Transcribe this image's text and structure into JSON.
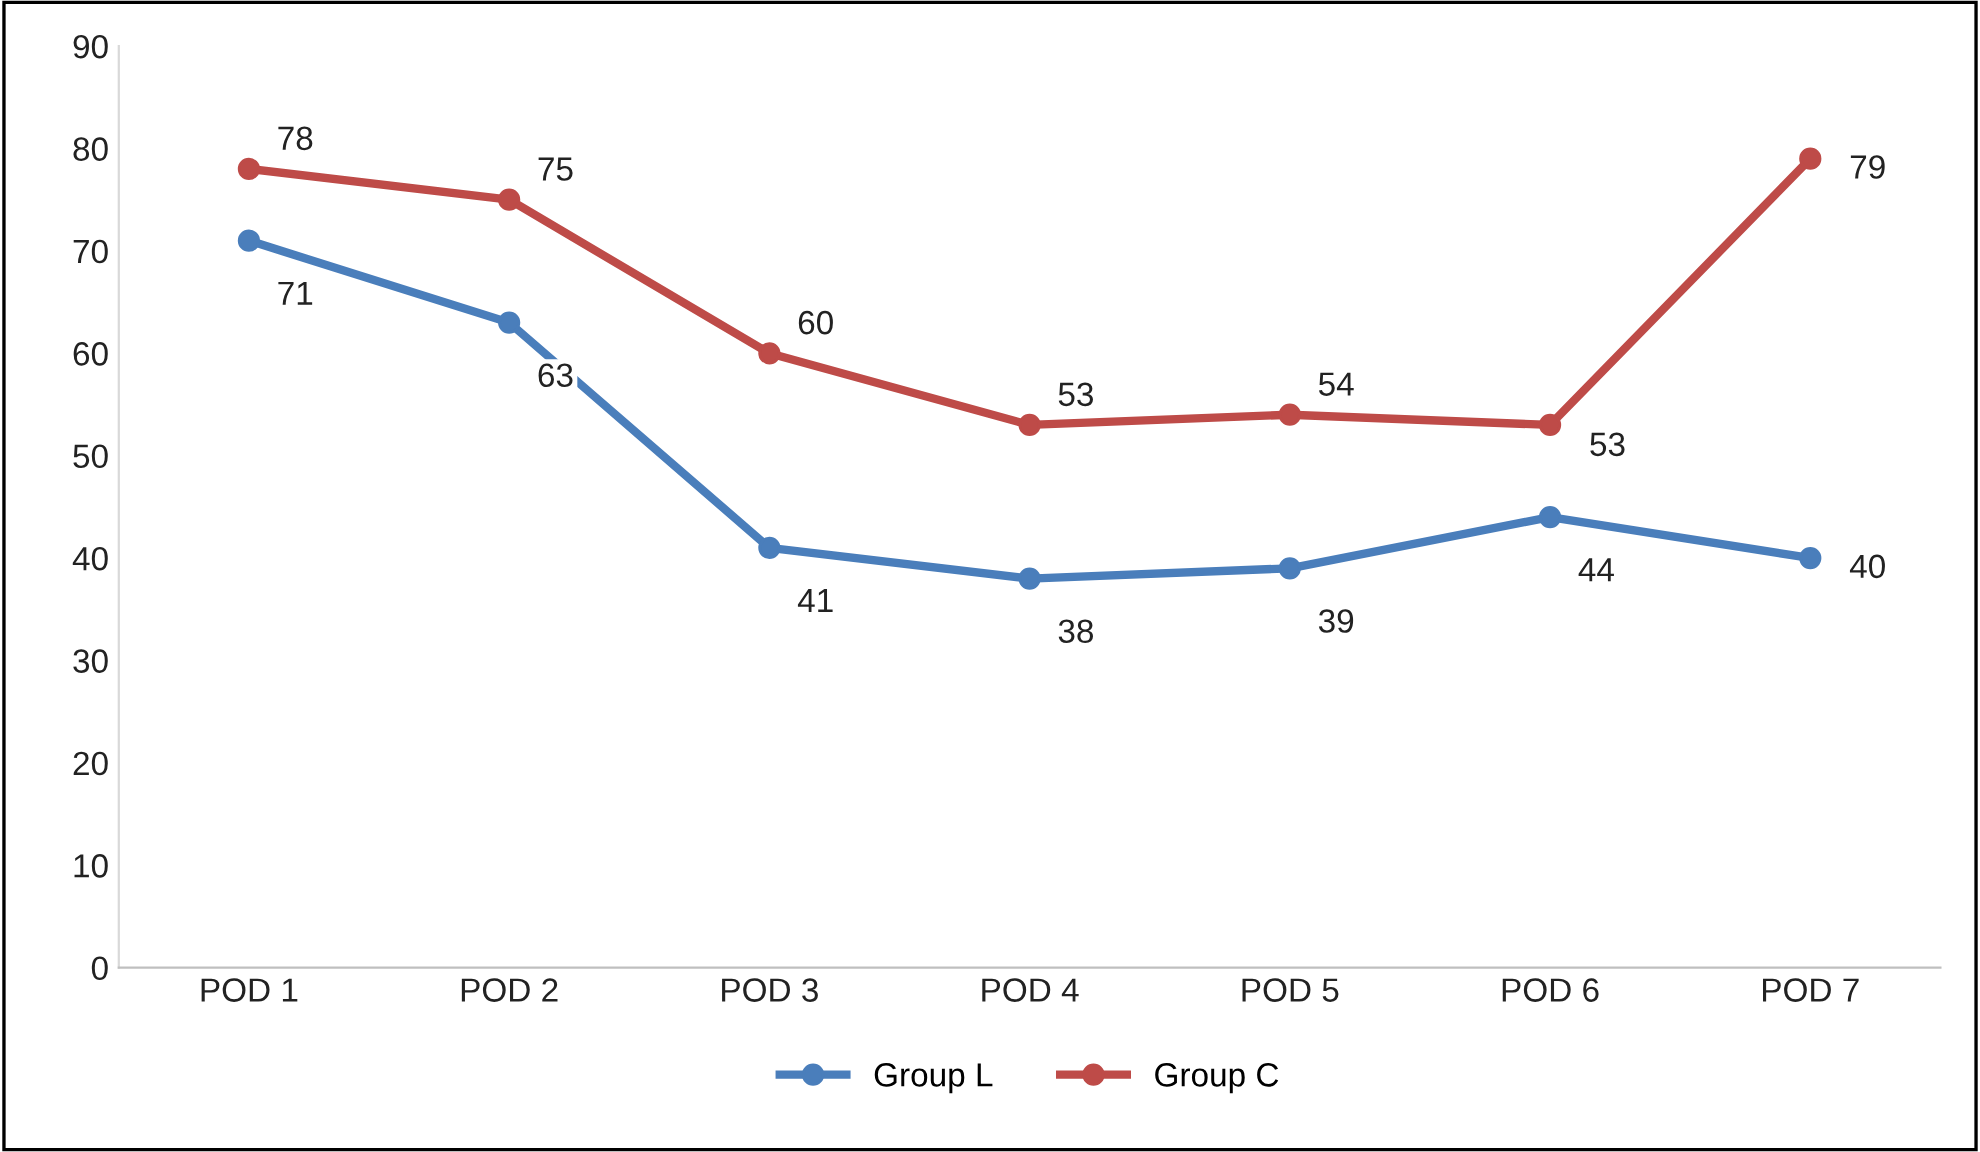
{
  "chart_data": {
    "type": "line",
    "categories": [
      "POD 1",
      "POD 2",
      "POD 3",
      "POD 4",
      "POD 5",
      "POD 6",
      "POD 7"
    ],
    "series": [
      {
        "name": "Group L",
        "color": "#4a7ebb",
        "values": [
          71,
          63,
          41,
          38,
          39,
          44,
          40
        ]
      },
      {
        "name": "Group C",
        "color": "#be4b48",
        "values": [
          78,
          75,
          60,
          53,
          54,
          53,
          79
        ]
      }
    ],
    "ylim": [
      0,
      90
    ],
    "yticks": [
      0,
      10,
      20,
      30,
      40,
      50,
      60,
      70,
      80,
      90
    ],
    "grid": false,
    "legend": "bottom",
    "marker": "circle",
    "line_style": "solid",
    "data_labels": true
  }
}
